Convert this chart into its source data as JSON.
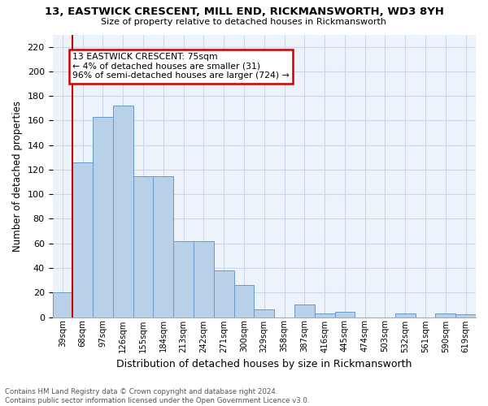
{
  "title": "13, EASTWICK CRESCENT, MILL END, RICKMANSWORTH, WD3 8YH",
  "subtitle": "Size of property relative to detached houses in Rickmansworth",
  "xlabel": "Distribution of detached houses by size in Rickmansworth",
  "ylabel": "Number of detached properties",
  "categories": [
    "39sqm",
    "68sqm",
    "97sqm",
    "126sqm",
    "155sqm",
    "184sqm",
    "213sqm",
    "242sqm",
    "271sqm",
    "300sqm",
    "329sqm",
    "358sqm",
    "387sqm",
    "416sqm",
    "445sqm",
    "474sqm",
    "503sqm",
    "532sqm",
    "561sqm",
    "590sqm",
    "619sqm"
  ],
  "values": [
    20,
    126,
    163,
    172,
    115,
    115,
    62,
    62,
    38,
    26,
    6,
    0,
    10,
    3,
    4,
    0,
    0,
    3,
    0,
    3,
    2
  ],
  "bar_color": "#b8d0e8",
  "bar_edge_color": "#6699cc",
  "marker_color": "#cc0000",
  "annotation_lines": [
    "13 EASTWICK CRESCENT: 75sqm",
    "← 4% of detached houses are smaller (31)",
    "96% of semi-detached houses are larger (724) →"
  ],
  "annotation_box_color": "#cc0000",
  "ylim": [
    0,
    230
  ],
  "yticks": [
    0,
    20,
    40,
    60,
    80,
    100,
    120,
    140,
    160,
    180,
    200,
    220
  ],
  "grid_color": "#c8d8ea",
  "background_color": "#edf3fa",
  "footer_line1": "Contains HM Land Registry data © Crown copyright and database right 2024.",
  "footer_line2": "Contains public sector information licensed under the Open Government Licence v3.0."
}
